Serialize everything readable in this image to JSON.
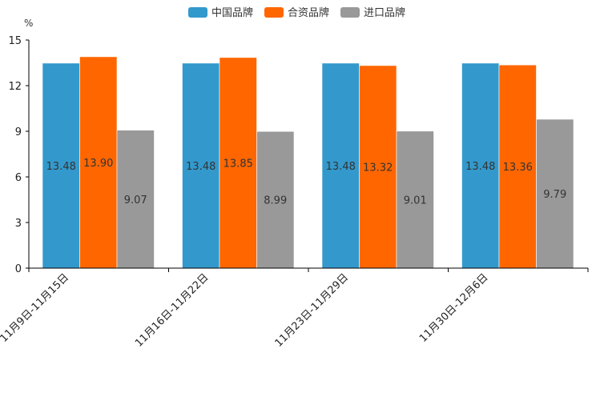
{
  "chart_data": {
    "type": "bar",
    "ylabel": "%",
    "ylim": [
      0,
      15
    ],
    "yticks": [
      0,
      3,
      6,
      9,
      12,
      15
    ],
    "categories": [
      "11月9日-11月15日",
      "11月16日-11月22日",
      "11月23日-11月29日",
      "11月30日-12月6日"
    ],
    "series": [
      {
        "name": "中国品牌",
        "color": "#3399cc",
        "values": [
          13.48,
          13.48,
          13.48,
          13.48
        ],
        "labels": [
          "13.48",
          "13.48",
          "13.48",
          "13.48"
        ]
      },
      {
        "name": "合资品牌",
        "color": "#ff6600",
        "values": [
          13.9,
          13.85,
          13.32,
          13.36
        ],
        "labels": [
          "13.90",
          "13.85",
          "13.32",
          "13.36"
        ]
      },
      {
        "name": "进口品牌",
        "color": "#999999",
        "values": [
          9.07,
          8.99,
          9.01,
          9.79
        ],
        "labels": [
          "9.07",
          "8.99",
          "9.01",
          "9.79"
        ]
      }
    ],
    "legend": "top-center",
    "grid": false
  }
}
